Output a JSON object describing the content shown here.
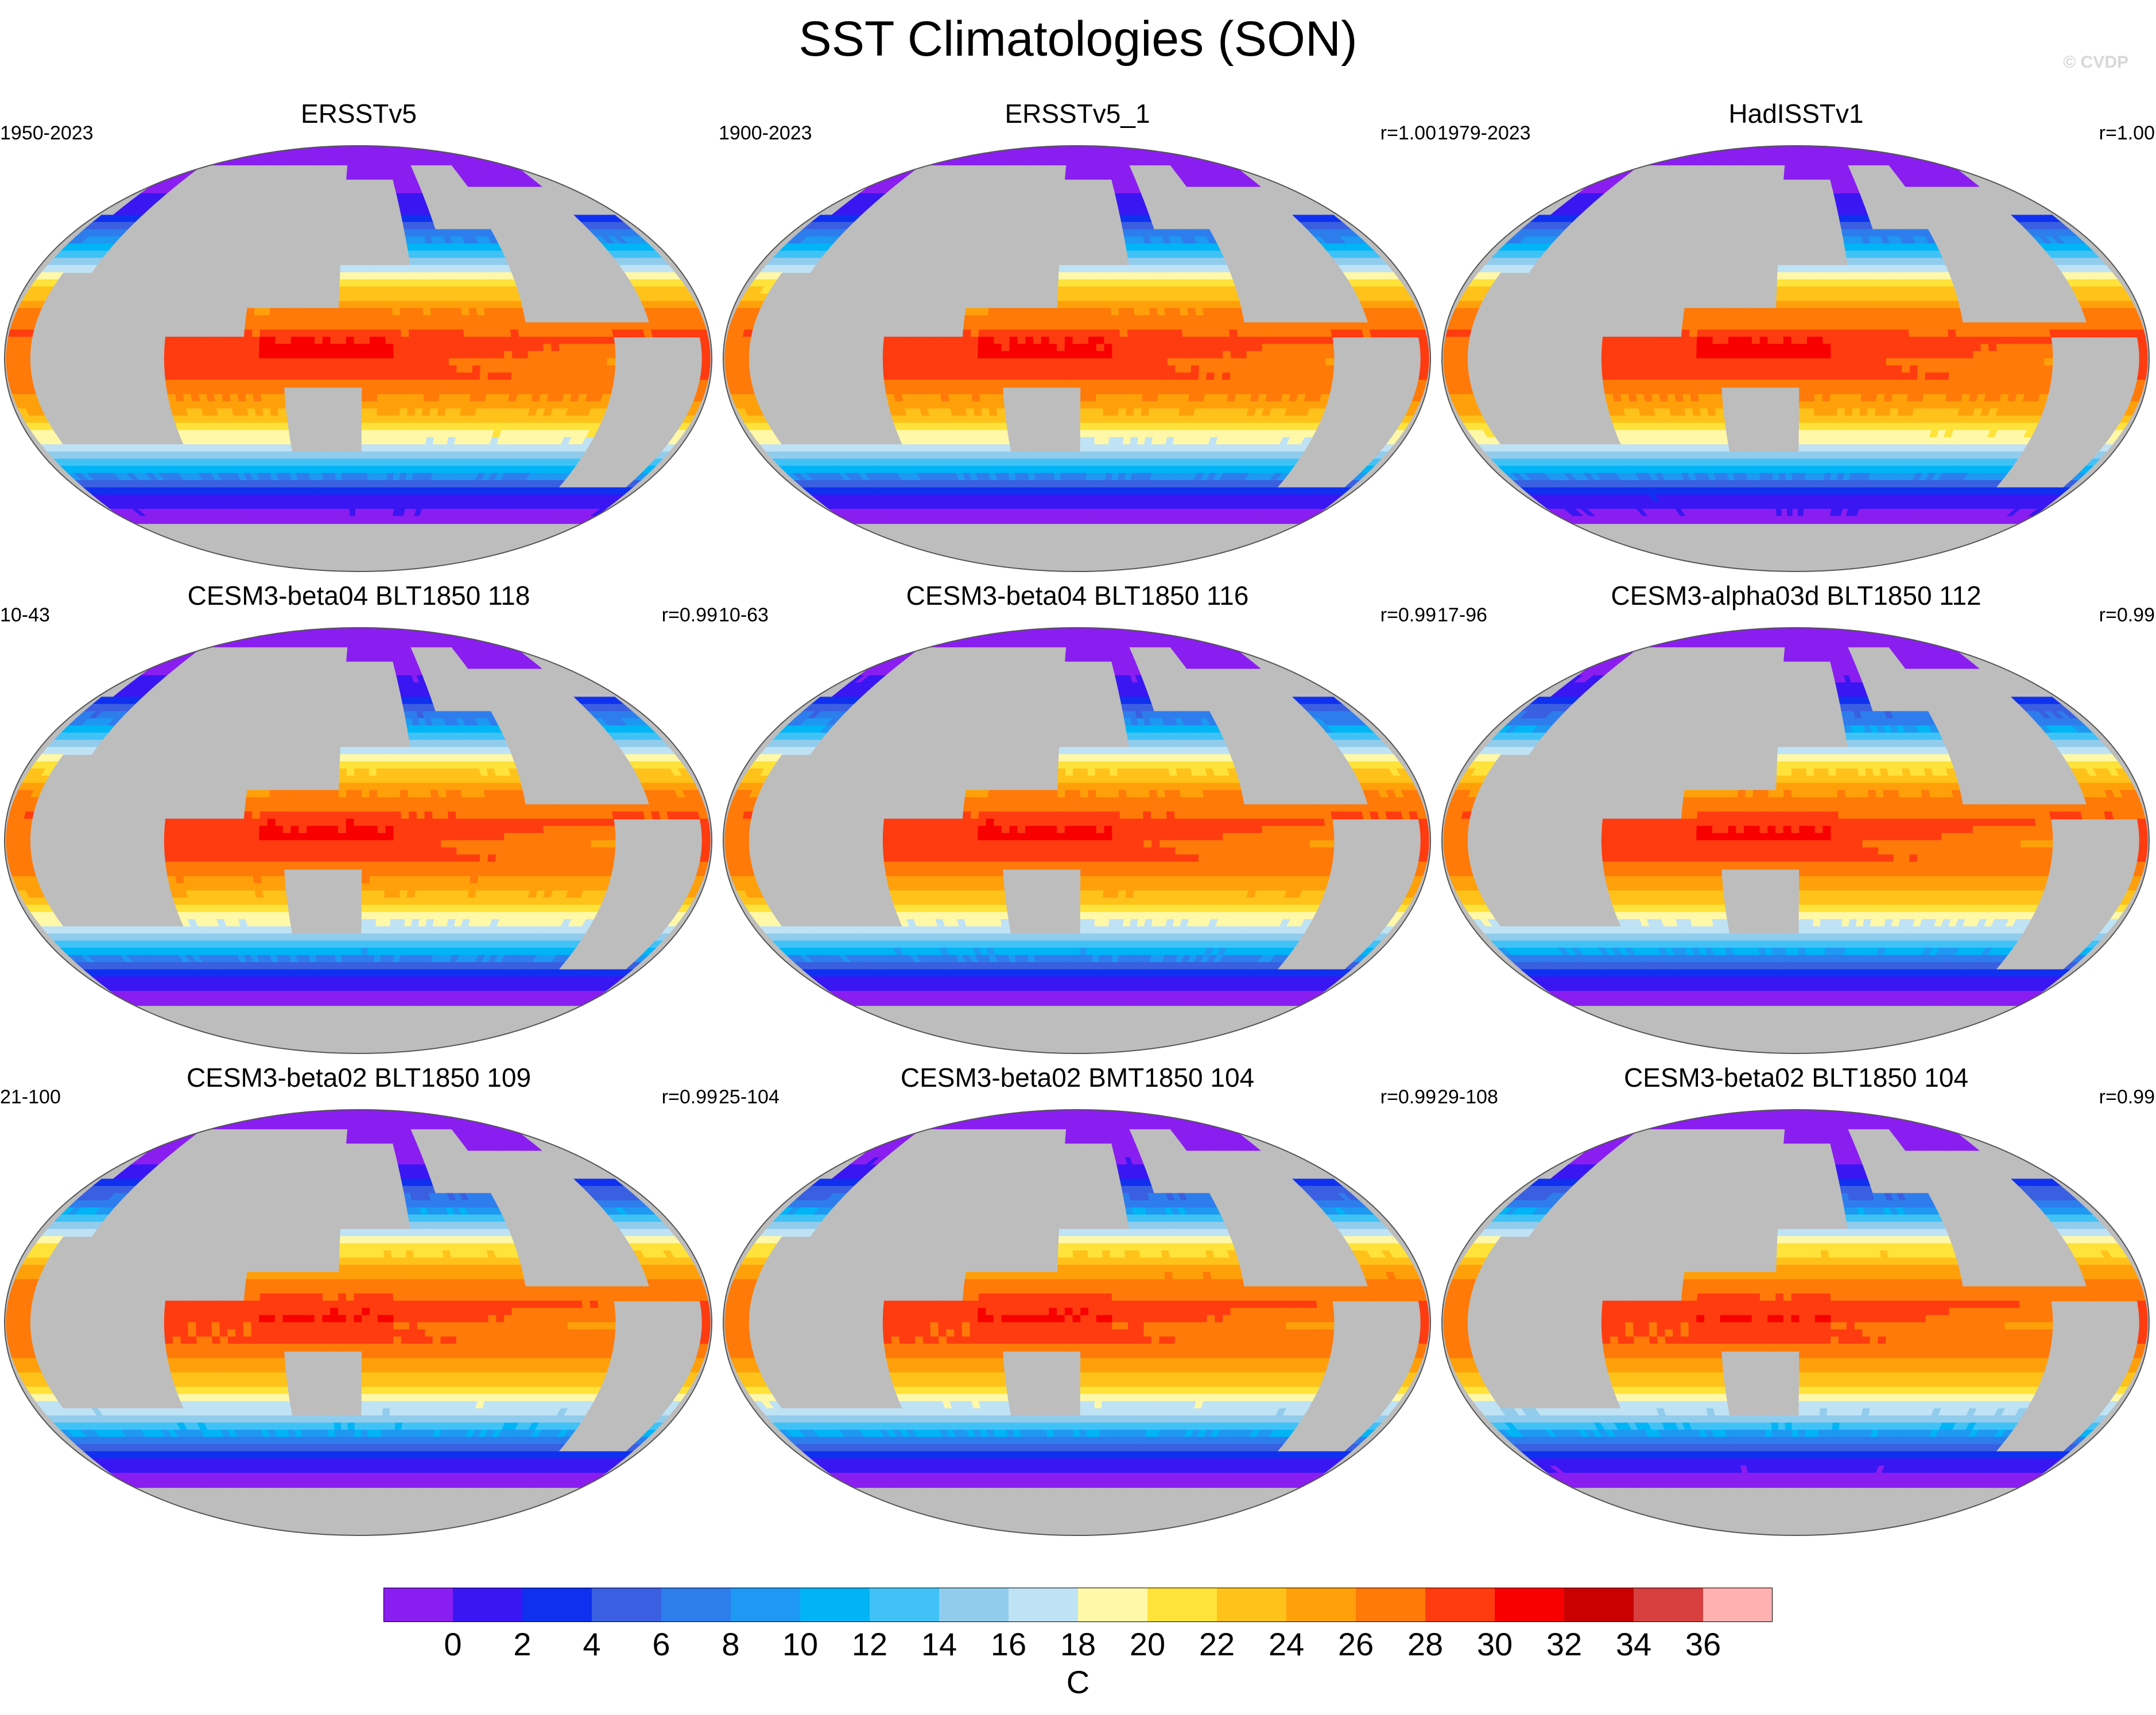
{
  "title": "SST Climatologies (SON)",
  "credit": "© CVDP",
  "chart_data": {
    "type": "heatmap",
    "title": "SST Climatologies (SON)",
    "variable": "SST",
    "season": "SON",
    "projection": "Robinson (global map)",
    "units": "C",
    "colorbar": {
      "levels": [
        0,
        2,
        4,
        6,
        8,
        10,
        12,
        14,
        16,
        18,
        20,
        22,
        24,
        26,
        28,
        30,
        32,
        34,
        36
      ],
      "tick_labels": [
        "0",
        "2",
        "4",
        "6",
        "8",
        "10",
        "12",
        "14",
        "16",
        "18",
        "20",
        "22",
        "24",
        "26",
        "28",
        "30",
        "32",
        "34",
        "36"
      ],
      "colors": [
        "#8a1ef0",
        "#3a16f2",
        "#1030f0",
        "#3a5fe0",
        "#2e7ded",
        "#1e98f2",
        "#00b4f5",
        "#40c2f6",
        "#92ccec",
        "#bfe2f5",
        "#fff8a8",
        "#ffe23a",
        "#ffc21a",
        "#ffa00a",
        "#ff7a08",
        "#ff3c10",
        "#f80000",
        "#c80000",
        "#d84040",
        "#ffb0b0"
      ]
    },
    "panels": [
      {
        "name": "ERSSTv5",
        "years": "1950-2023",
        "r": ""
      },
      {
        "name": "ERSSTv5_1",
        "years": "1900-2023",
        "r": "r=1.00"
      },
      {
        "name": "HadISSTv1",
        "years": "1979-2023",
        "r": "r=1.00"
      },
      {
        "name": "CESM3-beta04 BLT1850 118",
        "years": "10-43",
        "r": "r=0.99"
      },
      {
        "name": "CESM3-beta04 BLT1850 116",
        "years": "10-63",
        "r": "r=0.99"
      },
      {
        "name": "CESM3-alpha03d BLT1850 112",
        "years": "17-96",
        "r": "r=0.99"
      },
      {
        "name": "CESM3-beta02 BLT1850 109",
        "years": "21-100",
        "r": "r=0.99"
      },
      {
        "name": "CESM3-beta02 BMT1850 104",
        "years": "25-104",
        "r": "r=0.99"
      },
      {
        "name": "CESM3-beta02 BLT1850 104",
        "years": "29-108",
        "r": "r=0.99"
      }
    ]
  }
}
